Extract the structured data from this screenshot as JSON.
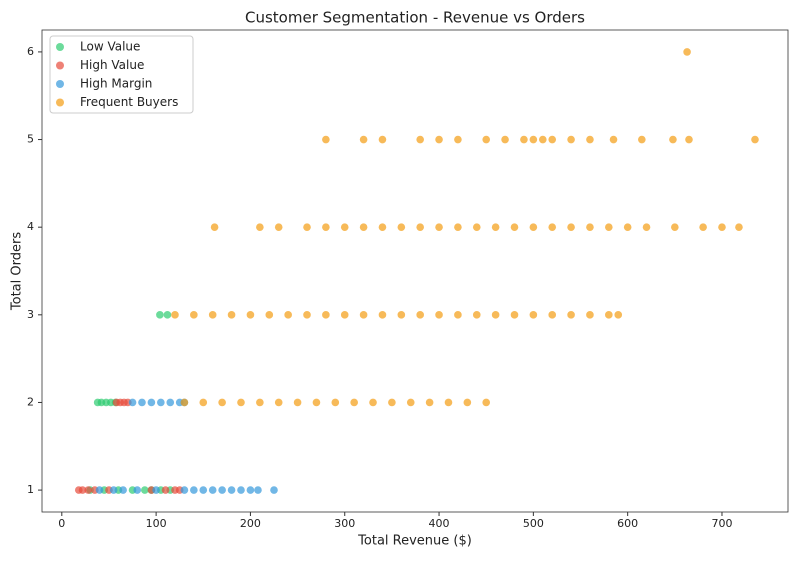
{
  "chart_data": {
    "type": "scatter",
    "title": "Customer Segmentation - Revenue vs Orders",
    "xlabel": "Total Revenue ($)",
    "ylabel": "Total Orders",
    "xlim": [
      -21,
      770
    ],
    "ylim": [
      0.75,
      6.25
    ],
    "xticks": [
      0,
      100,
      200,
      300,
      400,
      500,
      600,
      700
    ],
    "yticks": [
      1,
      2,
      3,
      4,
      5,
      6
    ],
    "legend": "upper-left",
    "grid": false,
    "series": [
      {
        "name": "Low Value",
        "color": "#2ecc71",
        "x": [
          30,
          45,
          60,
          75,
          88,
          95,
          105,
          115,
          38,
          42,
          47,
          52,
          57,
          104,
          112
        ],
        "y": [
          1,
          1,
          1,
          1,
          1,
          1,
          1,
          1,
          2,
          2,
          2,
          2,
          2,
          3,
          3
        ]
      },
      {
        "name": "High Value",
        "color": "#e74c3c",
        "x": [
          18,
          22,
          28,
          35,
          50,
          95,
          110,
          120,
          125,
          58,
          62,
          66,
          70
        ],
        "y": [
          1,
          1,
          1,
          1,
          1,
          1,
          1,
          1,
          1,
          2,
          2,
          2,
          2
        ]
      },
      {
        "name": "High Margin",
        "color": "#3498db",
        "x": [
          40,
          55,
          65,
          80,
          100,
          130,
          140,
          150,
          160,
          170,
          180,
          190,
          200,
          208,
          225,
          75,
          85,
          95,
          105,
          115,
          125,
          130
        ],
        "y": [
          1,
          1,
          1,
          1,
          1,
          1,
          1,
          1,
          1,
          1,
          1,
          1,
          1,
          1,
          1,
          2,
          2,
          2,
          2,
          2,
          2,
          2
        ]
      },
      {
        "name": "Frequent Buyers",
        "color": "#f39c12",
        "x": [
          130,
          150,
          170,
          190,
          210,
          230,
          250,
          270,
          290,
          310,
          330,
          350,
          370,
          390,
          410,
          430,
          450,
          120,
          140,
          160,
          180,
          200,
          220,
          240,
          260,
          280,
          300,
          320,
          340,
          360,
          380,
          400,
          420,
          440,
          460,
          480,
          500,
          520,
          540,
          560,
          580,
          590,
          162,
          210,
          230,
          260,
          280,
          300,
          320,
          340,
          360,
          380,
          400,
          420,
          440,
          460,
          480,
          500,
          520,
          540,
          560,
          580,
          600,
          620,
          650,
          680,
          700,
          718,
          280,
          320,
          340,
          380,
          400,
          420,
          450,
          470,
          490,
          500,
          510,
          520,
          540,
          560,
          585,
          615,
          648,
          665,
          735,
          663
        ],
        "y": [
          2,
          2,
          2,
          2,
          2,
          2,
          2,
          2,
          2,
          2,
          2,
          2,
          2,
          2,
          2,
          2,
          2,
          3,
          3,
          3,
          3,
          3,
          3,
          3,
          3,
          3,
          3,
          3,
          3,
          3,
          3,
          3,
          3,
          3,
          3,
          3,
          3,
          3,
          3,
          3,
          3,
          3,
          4,
          4,
          4,
          4,
          4,
          4,
          4,
          4,
          4,
          4,
          4,
          4,
          4,
          4,
          4,
          4,
          4,
          4,
          4,
          4,
          4,
          4,
          4,
          4,
          4,
          4,
          5,
          5,
          5,
          5,
          5,
          5,
          5,
          5,
          5,
          5,
          5,
          5,
          5,
          5,
          5,
          5,
          5,
          5,
          5,
          6
        ]
      }
    ]
  }
}
